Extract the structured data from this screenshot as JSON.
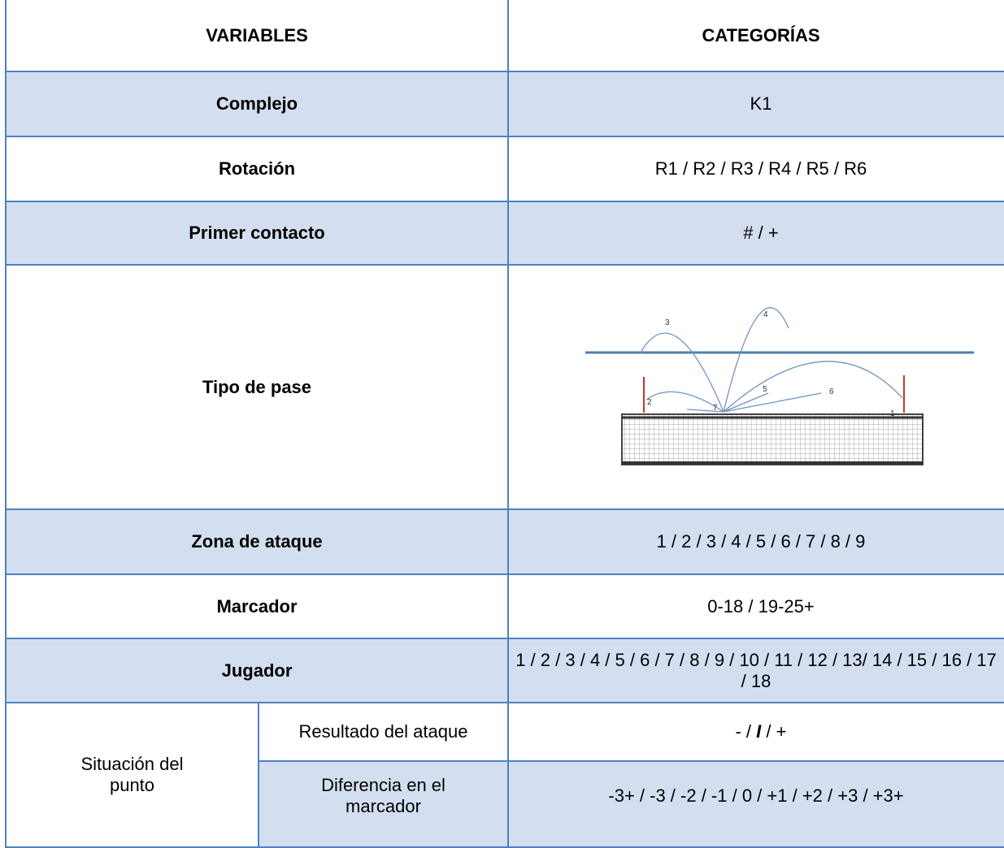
{
  "table": {
    "header": [
      "VARIABLES",
      "CATEGORÍAS"
    ],
    "rows": [
      {
        "variable": "Complejo",
        "category": "K1"
      },
      {
        "variable": "Rotación",
        "category": "R1 / R2 / R3 / R4 / R5 / R6"
      },
      {
        "variable": "Primer contacto",
        "category": "# / +"
      },
      {
        "variable": "Tipo de pase",
        "diagram_labels": [
          "1",
          "2",
          "3",
          "4",
          "5",
          "6",
          "7"
        ]
      },
      {
        "variable": "Zona de ataque",
        "category": "1 / 2 / 3 / 4 / 5 / 6 / 7 / 8 / 9"
      },
      {
        "variable": "Marcador",
        "category": "0-18 / 19-25+"
      },
      {
        "variable": "Jugador",
        "category": "1 / 2 / 3 / 4 / 5 / 6 / 7 / 8 / 9 / 10 / 11 / 12 / 13/ 14 / 15 / 16 / 17 / 18"
      }
    ],
    "group": {
      "label": "Situación del punto",
      "subrows": [
        {
          "variable": "Resultado del ataque",
          "category_parts": [
            "- /",
            "I",
            "/ +"
          ]
        },
        {
          "variable": "Diferencia en el marcador",
          "category": "-3+ / -3 / -2 / -1 / 0 / +1 / +2 / +3 / +3+"
        }
      ]
    }
  }
}
